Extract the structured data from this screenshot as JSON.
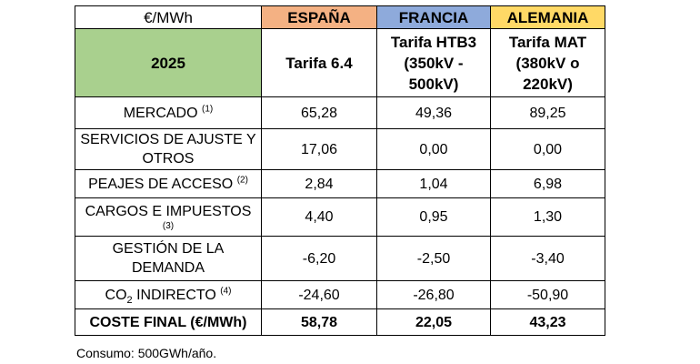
{
  "header": {
    "unit": "€/MWh",
    "countries": [
      "ESPAÑA",
      "FRANCIA",
      "ALEMANIA"
    ],
    "colors": {
      "espana": "#f4b183",
      "francia": "#8eaadb",
      "alemania": "#ffd966",
      "year": "#a9d08e"
    }
  },
  "tariff_row": {
    "year": "2025",
    "espana": "Tarifa 6.4",
    "francia": [
      "Tarifa HTB3",
      "(350kV -",
      "500kV)"
    ],
    "alemania": [
      "Tarifa MAT",
      "(380kV o",
      "220kV)"
    ]
  },
  "rows": [
    {
      "label": "MERCADO",
      "note": "(1)",
      "values": [
        "65,28",
        "49,36",
        "89,25"
      ]
    },
    {
      "label": [
        "SERVICIOS DE AJUSTE Y",
        "OTROS"
      ],
      "values": [
        "17,06",
        "0,00",
        "0,00"
      ]
    },
    {
      "label": "PEAJES DE ACCESO",
      "note": "(2)",
      "values": [
        "2,84",
        "1,04",
        "6,98"
      ]
    },
    {
      "label": "CARGOS E IMPUESTOS",
      "note": "(3)",
      "values": [
        "4,40",
        "0,95",
        "1,30"
      ]
    },
    {
      "label": [
        "GESTIÓN DE LA",
        "DEMANDA"
      ],
      "values": [
        "-6,20",
        "-2,50",
        "-3,40"
      ]
    },
    {
      "label_pre": "CO",
      "label_sub": "2",
      "label_post": " INDIRECTO",
      "note": "(4)",
      "values": [
        "-24,60",
        "-26,80",
        "-50,90"
      ]
    },
    {
      "label": "COSTE FINAL (€/MWh)",
      "values": [
        "58,78",
        "22,05",
        "43,23"
      ]
    }
  ],
  "footnote": "Consumo: 500GWh/año."
}
